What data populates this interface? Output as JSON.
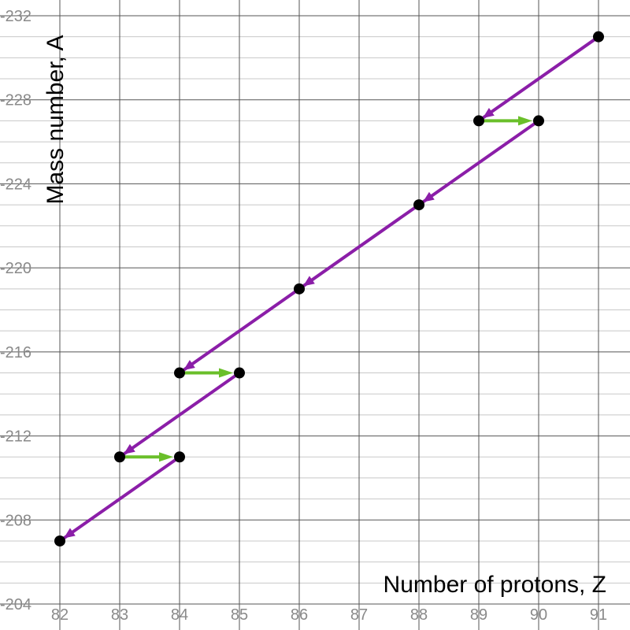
{
  "chart_data": {
    "type": "scatter",
    "xlabel": "Number of protons, Z",
    "ylabel": "Mass number, A",
    "xlim": [
      82,
      91
    ],
    "ylim": [
      204,
      232
    ],
    "x_ticks": [
      "82",
      "83",
      "84",
      "85",
      "86",
      "87",
      "88",
      "89",
      "90",
      "91"
    ],
    "y_ticks": [
      "-204",
      "-208",
      "-212",
      "-216",
      "-220",
      "-224",
      "-228",
      "-232"
    ],
    "y_tick_values": [
      204,
      208,
      212,
      216,
      220,
      224,
      228,
      232
    ],
    "grid": true,
    "points": [
      {
        "x": 91,
        "y": 231
      },
      {
        "x": 89,
        "y": 227
      },
      {
        "x": 90,
        "y": 227
      },
      {
        "x": 88,
        "y": 223
      },
      {
        "x": 86,
        "y": 219
      },
      {
        "x": 84,
        "y": 215
      },
      {
        "x": 85,
        "y": 215
      },
      {
        "x": 83,
        "y": 211
      },
      {
        "x": 84,
        "y": 211
      },
      {
        "x": 82,
        "y": 207
      }
    ],
    "alpha_decays": [
      {
        "from": [
          91,
          231
        ],
        "to": [
          89,
          227
        ]
      },
      {
        "from": [
          90,
          227
        ],
        "to": [
          88,
          223
        ]
      },
      {
        "from": [
          88,
          223
        ],
        "to": [
          86,
          219
        ]
      },
      {
        "from": [
          86,
          219
        ],
        "to": [
          84,
          215
        ]
      },
      {
        "from": [
          85,
          215
        ],
        "to": [
          83,
          211
        ]
      },
      {
        "from": [
          84,
          211
        ],
        "to": [
          82,
          207
        ]
      }
    ],
    "beta_decays": [
      {
        "from": [
          89,
          227
        ],
        "to": [
          90,
          227
        ]
      },
      {
        "from": [
          84,
          215
        ],
        "to": [
          85,
          215
        ]
      },
      {
        "from": [
          83,
          211
        ],
        "to": [
          84,
          211
        ]
      }
    ],
    "colors": {
      "alpha": "#8b1ea8",
      "beta": "#6abf2a",
      "point": "#000000"
    }
  }
}
